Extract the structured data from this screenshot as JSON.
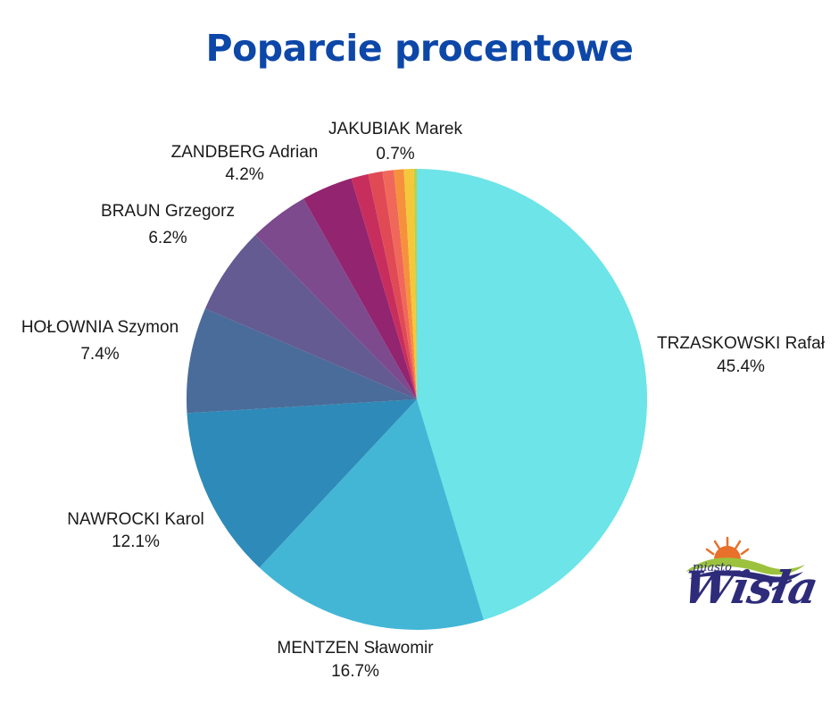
{
  "title": "Poparcie procentowe",
  "chart_data": {
    "type": "pie",
    "title": "Poparcie procentowe",
    "slices": [
      {
        "name": "TRZASKOWSKI Rafał",
        "value": 45.4,
        "label": "45.4%",
        "color": "#6ce4e8"
      },
      {
        "name": "MENTZEN Sławomir",
        "value": 16.7,
        "label": "16.7%",
        "color": "#43b6d6"
      },
      {
        "name": "NAWROCKI Karol",
        "value": 12.1,
        "label": "12.1%",
        "color": "#2e8ab8"
      },
      {
        "name": "HOŁOWNIA Szymon",
        "value": 7.4,
        "label": "7.4%",
        "color": "#4a6c9a"
      },
      {
        "name": "BRAUN Grzegorz",
        "value": 6.2,
        "label": "6.2%",
        "color": "#635b92"
      },
      {
        "name": "ZANDBERG Adrian",
        "value": 4.2,
        "label": "4.2%",
        "color": "#7d4a8e"
      },
      {
        "name": "",
        "value": 3.6,
        "label": "",
        "color": "#93246f"
      },
      {
        "name": "",
        "value": 1.2,
        "label": "",
        "color": "#c72e5e"
      },
      {
        "name": "",
        "value": 1.0,
        "label": "",
        "color": "#e04a55"
      },
      {
        "name": "",
        "value": 0.8,
        "label": "",
        "color": "#f0685a"
      },
      {
        "name": "",
        "value": 0.7,
        "label": "",
        "color": "#f5913d"
      },
      {
        "name": "JAKUBIAK Marek",
        "value": 0.7,
        "label": "0.7%",
        "color": "#f3c83a"
      },
      {
        "name": "",
        "value": 0.2,
        "label": "",
        "color": "#b5d24a"
      }
    ]
  },
  "logo": {
    "small_text": "miasto",
    "big_text": "Wisła"
  }
}
